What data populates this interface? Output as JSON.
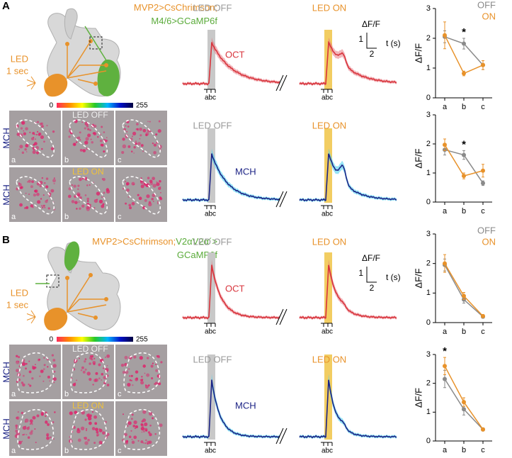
{
  "panels": [
    {
      "label": "A",
      "genotype": [
        [
          {
            "text": "MVP2>CsChrimson;",
            "color": "#e8922a"
          }
        ],
        [
          {
            "text": "M4/6>GCaMP6f",
            "color": "#5aab3a"
          }
        ]
      ],
      "stimulus": [
        "LED",
        "1 sec"
      ],
      "colorbar": [
        0,
        255
      ],
      "image_rows": [
        "MCH",
        "MCH"
      ],
      "image_cols": [
        "a",
        "b",
        "c"
      ],
      "image_conditions": [
        "LED OFF",
        "LED ON"
      ],
      "trace_conditions": [
        "LED OFF",
        "LED ON"
      ],
      "odors": [
        "OCT",
        "MCH"
      ],
      "time_marks": "abc",
      "scale_bar": {
        "y_label": "ΔF/F",
        "y_value": 1,
        "x_value": 2,
        "x_label": "t (s)"
      }
    },
    {
      "label": "B",
      "genotype": [
        [
          {
            "text": "MVP2>CsChrimson;",
            "color": "#e8922a"
          },
          {
            "text": "V2αV2α´>",
            "color": "#5aab3a"
          }
        ],
        [
          {
            "text": "GCaMP6f",
            "color": "#5aab3a"
          }
        ]
      ],
      "stimulus": [
        "LED",
        "1 sec"
      ],
      "colorbar": [
        0,
        255
      ],
      "image_rows": [
        "MCH",
        "MCH"
      ],
      "image_cols": [
        "a",
        "b",
        "c"
      ],
      "image_conditions": [
        "LED OFF",
        "LED ON"
      ],
      "trace_conditions": [
        "LED OFF",
        "LED ON"
      ],
      "odors": [
        "OCT",
        "MCH"
      ],
      "time_marks": "abc",
      "scale_bar": {
        "y_label": "ΔF/F",
        "y_value": 1,
        "x_value": 2,
        "x_label": "t (s)"
      }
    }
  ],
  "chart_data": [
    {
      "type": "line",
      "ylabel": "ΔF/F",
      "categories": [
        "a",
        "b",
        "c"
      ],
      "ylim": [
        0,
        3
      ],
      "yticks": [
        0,
        1,
        2,
        3
      ],
      "legend": true,
      "series": [
        {
          "name": "OFF",
          "color": "#8a8a8a",
          "values": [
            2.05,
            1.82,
            1.1
          ],
          "errors": [
            0.2,
            0.18,
            0.15
          ]
        },
        {
          "name": "ON",
          "color": "#e8922a",
          "values": [
            2.1,
            0.82,
            1.1
          ],
          "errors": [
            0.45,
            0.08,
            0.15
          ]
        }
      ],
      "annotations": [
        {
          "text": "*",
          "category": "b"
        }
      ]
    },
    {
      "type": "line",
      "ylabel": "ΔF/F",
      "categories": [
        "a",
        "b",
        "c"
      ],
      "ylim": [
        0,
        3
      ],
      "yticks": [
        0,
        1,
        2,
        3
      ],
      "legend": false,
      "series": [
        {
          "color": "#8a8a8a",
          "values": [
            1.8,
            1.62,
            0.65
          ],
          "errors": [
            0.18,
            0.15,
            0.08
          ]
        },
        {
          "color": "#e8922a",
          "values": [
            1.97,
            0.9,
            1.08
          ],
          "errors": [
            0.2,
            0.1,
            0.22
          ]
        }
      ],
      "annotations": [
        {
          "text": "*",
          "category": "b"
        }
      ]
    },
    {
      "type": "line",
      "ylabel": "ΔF/F",
      "categories": [
        "a",
        "b",
        "c"
      ],
      "ylim": [
        0,
        3
      ],
      "yticks": [
        0,
        1,
        2,
        3
      ],
      "legend": true,
      "series": [
        {
          "name": "OFF",
          "color": "#8a8a8a",
          "values": [
            1.95,
            0.78,
            0.2
          ],
          "errors": [
            0.2,
            0.12,
            0.05
          ]
        },
        {
          "name": "ON",
          "color": "#e8922a",
          "values": [
            2.0,
            0.9,
            0.22
          ],
          "errors": [
            0.3,
            0.12,
            0.05
          ]
        }
      ],
      "annotations": []
    },
    {
      "type": "line",
      "ylabel": "ΔF/F",
      "categories": [
        "a",
        "b",
        "c"
      ],
      "ylim": [
        0,
        3
      ],
      "yticks": [
        0,
        1,
        2,
        3
      ],
      "legend": false,
      "series": [
        {
          "color": "#8a8a8a",
          "values": [
            2.15,
            1.1,
            0.4
          ],
          "errors": [
            0.3,
            0.2,
            0.05
          ]
        },
        {
          "color": "#e8922a",
          "values": [
            2.6,
            1.35,
            0.4
          ],
          "errors": [
            0.3,
            0.15,
            0.05
          ]
        }
      ],
      "annotations": [
        {
          "text": "*",
          "category": "a"
        }
      ]
    }
  ]
}
